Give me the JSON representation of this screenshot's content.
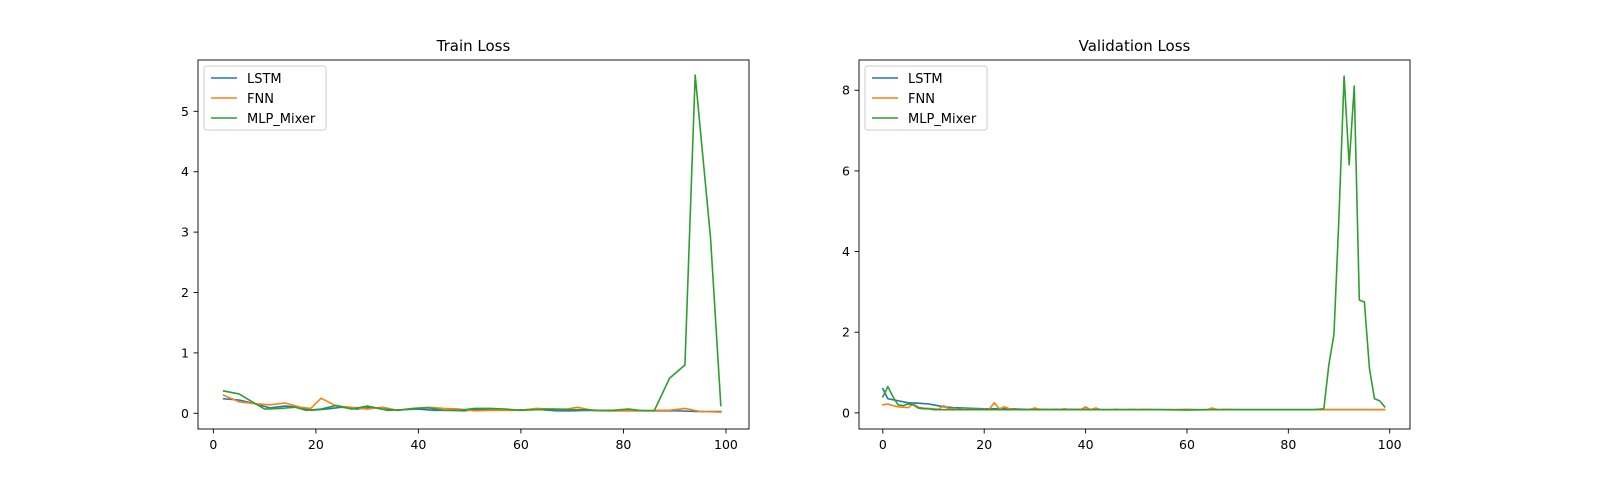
{
  "chart_data": [
    {
      "type": "line",
      "title": "Train Loss",
      "xlabel": "",
      "ylabel": "",
      "xlim": [
        -3,
        104.5
      ],
      "ylim": [
        -0.26,
        5.85
      ],
      "xticks": [
        0,
        20,
        40,
        60,
        80,
        100
      ],
      "yticks": [
        0,
        1,
        2,
        3,
        4,
        5
      ],
      "grid": false,
      "legend_position": "top-left",
      "series": [
        {
          "name": "LSTM",
          "color": "#1f77b4",
          "x": [
            2,
            5,
            8,
            11,
            14,
            17,
            19,
            22,
            25,
            28,
            31,
            34,
            37,
            40,
            43,
            46,
            49,
            52,
            55,
            58,
            61,
            64,
            67,
            70,
            73,
            76,
            79,
            82,
            85,
            88,
            91,
            94,
            97,
            99
          ],
          "y": [
            0.24,
            0.22,
            0.16,
            0.09,
            0.12,
            0.1,
            0.05,
            0.07,
            0.1,
            0.07,
            0.1,
            0.05,
            0.06,
            0.07,
            0.05,
            0.05,
            0.04,
            0.07,
            0.06,
            0.05,
            0.06,
            0.06,
            0.04,
            0.04,
            0.05,
            0.04,
            0.04,
            0.04,
            0.04,
            0.04,
            0.04,
            0.03,
            0.03,
            0.03
          ]
        },
        {
          "name": "FNN",
          "color": "#ff7f0e",
          "x": [
            2,
            5,
            8,
            11,
            14,
            17,
            19,
            21,
            24,
            27,
            30,
            33,
            36,
            39,
            42,
            45,
            48,
            51,
            54,
            57,
            60,
            63,
            66,
            69,
            71,
            74,
            77,
            80,
            83,
            86,
            89,
            92,
            95,
            99
          ],
          "y": [
            0.3,
            0.19,
            0.16,
            0.14,
            0.17,
            0.1,
            0.08,
            0.25,
            0.12,
            0.1,
            0.07,
            0.1,
            0.05,
            0.08,
            0.1,
            0.08,
            0.07,
            0.04,
            0.05,
            0.05,
            0.05,
            0.08,
            0.07,
            0.07,
            0.1,
            0.05,
            0.04,
            0.04,
            0.04,
            0.05,
            0.05,
            0.08,
            0.03,
            0.02
          ]
        },
        {
          "name": "MLP_Mixer",
          "color": "#2ca02c",
          "x": [
            2,
            5,
            8,
            10,
            13,
            16,
            18,
            21,
            24,
            27,
            30,
            33,
            36,
            39,
            42,
            45,
            48,
            51,
            54,
            57,
            60,
            63,
            66,
            69,
            72,
            75,
            78,
            81,
            83,
            86,
            89,
            92,
            94,
            97,
            99
          ],
          "y": [
            0.37,
            0.32,
            0.17,
            0.07,
            0.08,
            0.1,
            0.05,
            0.07,
            0.13,
            0.07,
            0.12,
            0.07,
            0.05,
            0.08,
            0.09,
            0.05,
            0.05,
            0.08,
            0.08,
            0.07,
            0.05,
            0.06,
            0.07,
            0.06,
            0.06,
            0.05,
            0.05,
            0.07,
            0.05,
            0.04,
            0.58,
            0.8,
            5.6,
            2.9,
            0.13
          ]
        }
      ]
    },
    {
      "type": "line",
      "title": "Validation Loss",
      "xlabel": "",
      "ylabel": "",
      "xlim": [
        -4.7,
        104
      ],
      "ylim": [
        -0.4,
        8.75
      ],
      "xticks": [
        0,
        20,
        40,
        60,
        80,
        100
      ],
      "yticks": [
        0,
        2,
        4,
        6,
        8
      ],
      "grid": false,
      "legend_position": "top-left",
      "series": [
        {
          "name": "LSTM",
          "color": "#1f77b4",
          "x": [
            0,
            1,
            3,
            5,
            7,
            9,
            10,
            12,
            14,
            16,
            18,
            20,
            22,
            24,
            26,
            28,
            30,
            32,
            34,
            36,
            38,
            40,
            42,
            44,
            46,
            48,
            50,
            52,
            54,
            56,
            58,
            60,
            62,
            64,
            66,
            68,
            70,
            72,
            74,
            76,
            78,
            80,
            82,
            84,
            86,
            88,
            90,
            92,
            94,
            96,
            98,
            99
          ],
          "y": [
            0.6,
            0.35,
            0.3,
            0.25,
            0.24,
            0.22,
            0.2,
            0.15,
            0.13,
            0.12,
            0.11,
            0.1,
            0.1,
            0.1,
            0.1,
            0.09,
            0.09,
            0.09,
            0.09,
            0.09,
            0.09,
            0.09,
            0.08,
            0.08,
            0.08,
            0.08,
            0.08,
            0.08,
            0.08,
            0.08,
            0.08,
            0.08,
            0.08,
            0.08,
            0.08,
            0.08,
            0.08,
            0.08,
            0.08,
            0.08,
            0.08,
            0.08,
            0.08,
            0.08,
            0.08,
            0.08,
            0.08,
            0.08,
            0.08,
            0.08,
            0.08,
            0.08
          ]
        },
        {
          "name": "FNN",
          "color": "#ff7f0e",
          "x": [
            0,
            1,
            2,
            3,
            4,
            5,
            6,
            7,
            8,
            9,
            10,
            11,
            12,
            13,
            14,
            15,
            16,
            17,
            18,
            19,
            20,
            21,
            22,
            23,
            24,
            25,
            26,
            27,
            28,
            29,
            30,
            31,
            32,
            33,
            34,
            35,
            36,
            37,
            38,
            39,
            40,
            41,
            42,
            43,
            44,
            45,
            46,
            47,
            48,
            49,
            50,
            52,
            54,
            56,
            58,
            60,
            62,
            64,
            65,
            66,
            68,
            70,
            72,
            74,
            76,
            78,
            80,
            82,
            84,
            86,
            88,
            90,
            92,
            94,
            96,
            98,
            99
          ],
          "y": [
            0.2,
            0.22,
            0.18,
            0.15,
            0.14,
            0.13,
            0.22,
            0.14,
            0.12,
            0.11,
            0.1,
            0.09,
            0.18,
            0.1,
            0.11,
            0.09,
            0.1,
            0.09,
            0.09,
            0.09,
            0.09,
            0.09,
            0.25,
            0.1,
            0.15,
            0.1,
            0.09,
            0.09,
            0.08,
            0.09,
            0.12,
            0.09,
            0.08,
            0.09,
            0.08,
            0.09,
            0.1,
            0.08,
            0.09,
            0.08,
            0.15,
            0.08,
            0.12,
            0.08,
            0.08,
            0.08,
            0.09,
            0.08,
            0.08,
            0.09,
            0.08,
            0.09,
            0.08,
            0.08,
            0.08,
            0.09,
            0.08,
            0.08,
            0.12,
            0.08,
            0.09,
            0.08,
            0.08,
            0.08,
            0.08,
            0.08,
            0.08,
            0.08,
            0.08,
            0.08,
            0.08,
            0.08,
            0.08,
            0.08,
            0.08,
            0.08,
            0.08
          ]
        },
        {
          "name": "MLP_Mixer",
          "color": "#2ca02c",
          "x": [
            0,
            1,
            2,
            3,
            4,
            5,
            6,
            7,
            8,
            9,
            10,
            12,
            14,
            16,
            18,
            20,
            25,
            30,
            35,
            40,
            45,
            50,
            55,
            60,
            65,
            70,
            75,
            80,
            85,
            87,
            88,
            89,
            90,
            91,
            92,
            93,
            94,
            95,
            96,
            97,
            98,
            99
          ],
          "y": [
            0.4,
            0.65,
            0.4,
            0.2,
            0.18,
            0.22,
            0.2,
            0.12,
            0.1,
            0.1,
            0.08,
            0.08,
            0.08,
            0.08,
            0.08,
            0.08,
            0.08,
            0.08,
            0.08,
            0.08,
            0.08,
            0.08,
            0.08,
            0.07,
            0.08,
            0.08,
            0.08,
            0.08,
            0.08,
            0.1,
            1.2,
            1.95,
            4.9,
            8.35,
            6.15,
            8.1,
            2.8,
            2.75,
            1.1,
            0.35,
            0.3,
            0.15
          ]
        }
      ]
    }
  ]
}
